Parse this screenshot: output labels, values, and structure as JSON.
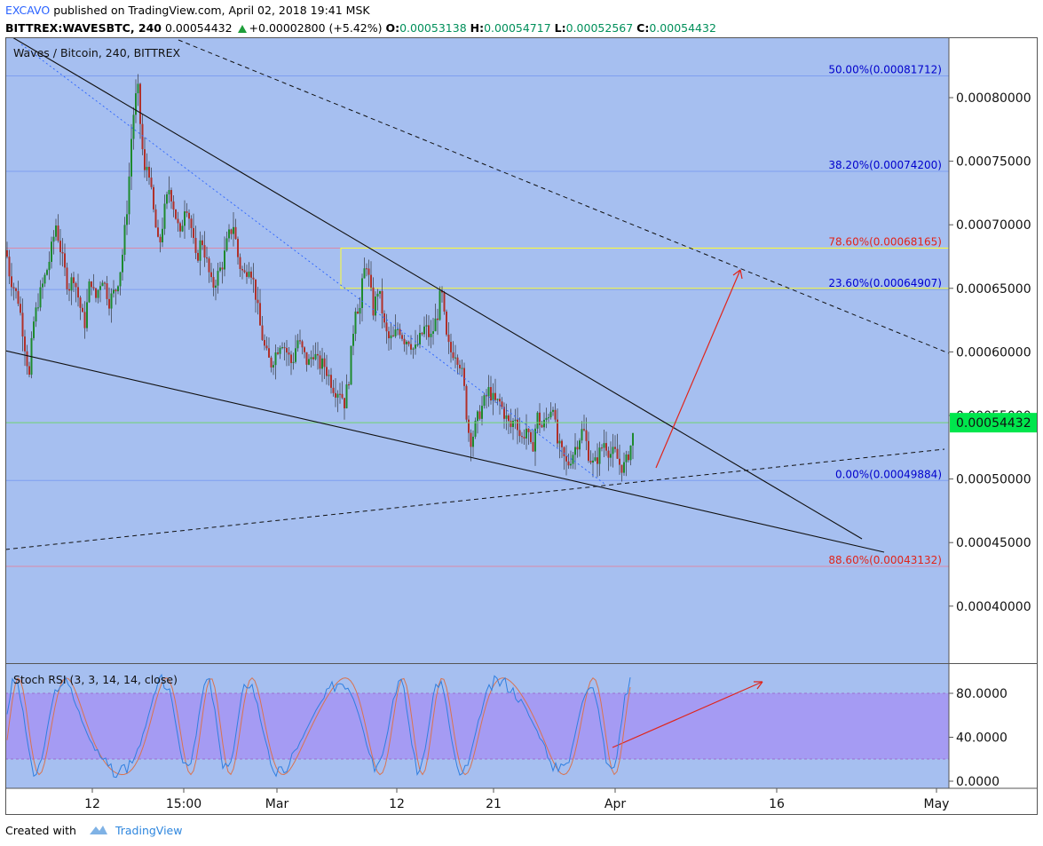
{
  "header": {
    "author": "EXCAVO",
    "published_text": "published on TradingView.com, April 02, 2018 19:41 MSK",
    "symbol": "BITTREX:WAVESBTC, 240",
    "last_price": "0.00054432",
    "change": "+0.00002800 (+5.42%)",
    "o_label": "O:",
    "o_value": "0.00053138",
    "h_label": "H:",
    "h_value": "0.00054717",
    "l_label": "L:",
    "l_value": "0.00052567",
    "c_label": "C:",
    "c_value": "0.00054432"
  },
  "footer": {
    "created_with": "Created with",
    "brand": "TradingView"
  },
  "chart_data": {
    "type": "candlestick",
    "title": "Waves / Bitcoin, 240, BITTREX",
    "colors": {
      "background": "#a6bff0",
      "up": "#1e8a2e",
      "down": "#b0302a",
      "fib_blue": "#0000cc",
      "fib_red": "#e0241a",
      "price_tag": "#00e64d",
      "rsi_band": "#a59bf3",
      "rsi_k": "#2f7fe0",
      "rsi_d": "#d9734f",
      "annotation_arrow": "#e0241a",
      "zone": "#ffff33"
    },
    "y_axis": {
      "range": [
        0.00035,
        0.00085
      ],
      "ticks": [
        "0.00080000",
        "0.00075000",
        "0.00070000",
        "0.00065000",
        "0.00060000",
        "0.00055000",
        "0.00050000",
        "0.00045000",
        "0.00040000"
      ],
      "tick_values": [
        0.0008,
        0.00075,
        0.0007,
        0.00065,
        0.0006,
        0.00055,
        0.0005,
        0.00045,
        0.0004
      ],
      "last_price_label": "0.00054432",
      "last_price": 0.00054432
    },
    "x_axis": {
      "ticks": [
        "12",
        "15:00",
        "Mar",
        "12",
        "21",
        "Apr",
        "16",
        "May"
      ]
    },
    "fib_levels": [
      {
        "label": "50.00%(0.00081712)",
        "price": 0.00081712,
        "color": "blue"
      },
      {
        "label": "38.20%(0.00074200)",
        "price": 0.000742,
        "color": "blue"
      },
      {
        "label": "78.60%(0.00068165)",
        "price": 0.00068165,
        "color": "red"
      },
      {
        "label": "23.60%(0.00064907)",
        "price": 0.00064907,
        "color": "blue"
      },
      {
        "label": "0.00%(0.00049884)",
        "price": 0.00049884,
        "color": "blue"
      },
      {
        "label": "88.60%(0.00043132)",
        "price": 0.00043132,
        "color": "red"
      }
    ],
    "price_path": [
      [
        0,
        0.00068
      ],
      [
        4,
        0.00066
      ],
      [
        14,
        0.00064
      ],
      [
        22,
        0.0006
      ],
      [
        26,
        0.00058
      ],
      [
        30,
        0.00062
      ],
      [
        36,
        0.00064
      ],
      [
        48,
        0.00067
      ],
      [
        56,
        0.0007
      ],
      [
        64,
        0.00067
      ],
      [
        70,
        0.00065
      ],
      [
        76,
        0.00066
      ],
      [
        82,
        0.00064
      ],
      [
        88,
        0.00062
      ],
      [
        95,
        0.00066
      ],
      [
        100,
        0.00064
      ],
      [
        108,
        0.00066
      ],
      [
        116,
        0.00064
      ],
      [
        124,
        0.00065
      ],
      [
        130,
        0.00067
      ],
      [
        137,
        0.00072
      ],
      [
        142,
        0.00078
      ],
      [
        148,
        0.00081
      ],
      [
        152,
        0.00077
      ],
      [
        156,
        0.00074
      ],
      [
        160,
        0.00075
      ],
      [
        164,
        0.00072
      ],
      [
        168,
        0.0007
      ],
      [
        172,
        0.00068
      ],
      [
        178,
        0.00071
      ],
      [
        184,
        0.00073
      ],
      [
        190,
        0.00071
      ],
      [
        196,
        0.00069
      ],
      [
        202,
        0.00072
      ],
      [
        208,
        0.0007
      ],
      [
        214,
        0.00067
      ],
      [
        220,
        0.00069
      ],
      [
        226,
        0.00067
      ],
      [
        232,
        0.00065
      ],
      [
        238,
        0.00066
      ],
      [
        244,
        0.00067
      ],
      [
        250,
        0.00069
      ],
      [
        256,
        0.0007
      ],
      [
        262,
        0.00067
      ],
      [
        268,
        0.00066
      ],
      [
        274,
        0.00067
      ],
      [
        280,
        0.00065
      ],
      [
        286,
        0.00062
      ],
      [
        292,
        0.0006
      ],
      [
        298,
        0.00059
      ],
      [
        304,
        0.0006
      ],
      [
        310,
        0.00061
      ],
      [
        316,
        0.0006
      ],
      [
        322,
        0.00059
      ],
      [
        328,
        0.00061
      ],
      [
        334,
        0.0006
      ],
      [
        340,
        0.00059
      ],
      [
        346,
        0.0006
      ],
      [
        352,
        0.00059
      ],
      [
        358,
        0.00059
      ],
      [
        364,
        0.00058
      ],
      [
        370,
        0.00057
      ],
      [
        376,
        0.00057
      ],
      [
        381,
        0.00056
      ],
      [
        386,
        0.00058
      ],
      [
        390,
        0.00061
      ],
      [
        394,
        0.00064
      ],
      [
        398,
        0.00063
      ],
      [
        402,
        0.00066
      ],
      [
        406,
        0.00067
      ],
      [
        410,
        0.00065
      ],
      [
        414,
        0.00063
      ],
      [
        418,
        0.00065
      ],
      [
        422,
        0.00064
      ],
      [
        426,
        0.00062
      ],
      [
        430,
        0.00061
      ],
      [
        436,
        0.00061
      ],
      [
        442,
        0.00062
      ],
      [
        448,
        0.00061
      ],
      [
        454,
        0.00061
      ],
      [
        460,
        0.0006
      ],
      [
        466,
        0.00061
      ],
      [
        472,
        0.00062
      ],
      [
        478,
        0.00061
      ],
      [
        482,
        0.00062
      ],
      [
        486,
        0.00063
      ],
      [
        490,
        0.00065
      ],
      [
        493,
        0.00063
      ],
      [
        496,
        0.00061
      ],
      [
        500,
        0.0006
      ],
      [
        506,
        0.0006
      ],
      [
        512,
        0.00059
      ],
      [
        516,
        0.00057
      ],
      [
        520,
        0.00054
      ],
      [
        524,
        0.00053
      ],
      [
        528,
        0.00054
      ],
      [
        532,
        0.00055
      ],
      [
        538,
        0.00056
      ],
      [
        544,
        0.00057
      ],
      [
        550,
        0.00056
      ],
      [
        556,
        0.00056
      ],
      [
        562,
        0.00055
      ],
      [
        568,
        0.00054
      ],
      [
        574,
        0.00055
      ],
      [
        580,
        0.00053
      ],
      [
        586,
        0.00054
      ],
      [
        592,
        0.00052
      ],
      [
        598,
        0.00055
      ],
      [
        604,
        0.00054
      ],
      [
        610,
        0.00055
      ],
      [
        616,
        0.00056
      ],
      [
        620,
        0.00053
      ],
      [
        626,
        0.00052
      ],
      [
        632,
        0.00051
      ],
      [
        638,
        0.00052
      ],
      [
        644,
        0.00053
      ],
      [
        650,
        0.00054
      ],
      [
        656,
        0.00052
      ],
      [
        662,
        0.00051
      ],
      [
        668,
        0.00052
      ],
      [
        674,
        0.00053
      ],
      [
        680,
        0.00052
      ],
      [
        686,
        0.00052
      ],
      [
        692,
        0.00051
      ],
      [
        697,
        0.00051
      ],
      [
        701,
        0.00052
      ],
      [
        705,
        0.00053
      ],
      [
        709,
        0.000545
      ]
    ],
    "annotations": {
      "yellow_zone": {
        "price_low": 0.00065,
        "price_high": 0.00068165
      },
      "arrow_target_price": 0.00067
    },
    "indicator": {
      "title": "Stoch RSI (3, 3, 14, 14, close)",
      "y_ticks": [
        "80.0000",
        "40.0000",
        "0.0000"
      ],
      "y_tick_values": [
        80,
        40,
        0
      ],
      "band": [
        20,
        80
      ]
    }
  }
}
